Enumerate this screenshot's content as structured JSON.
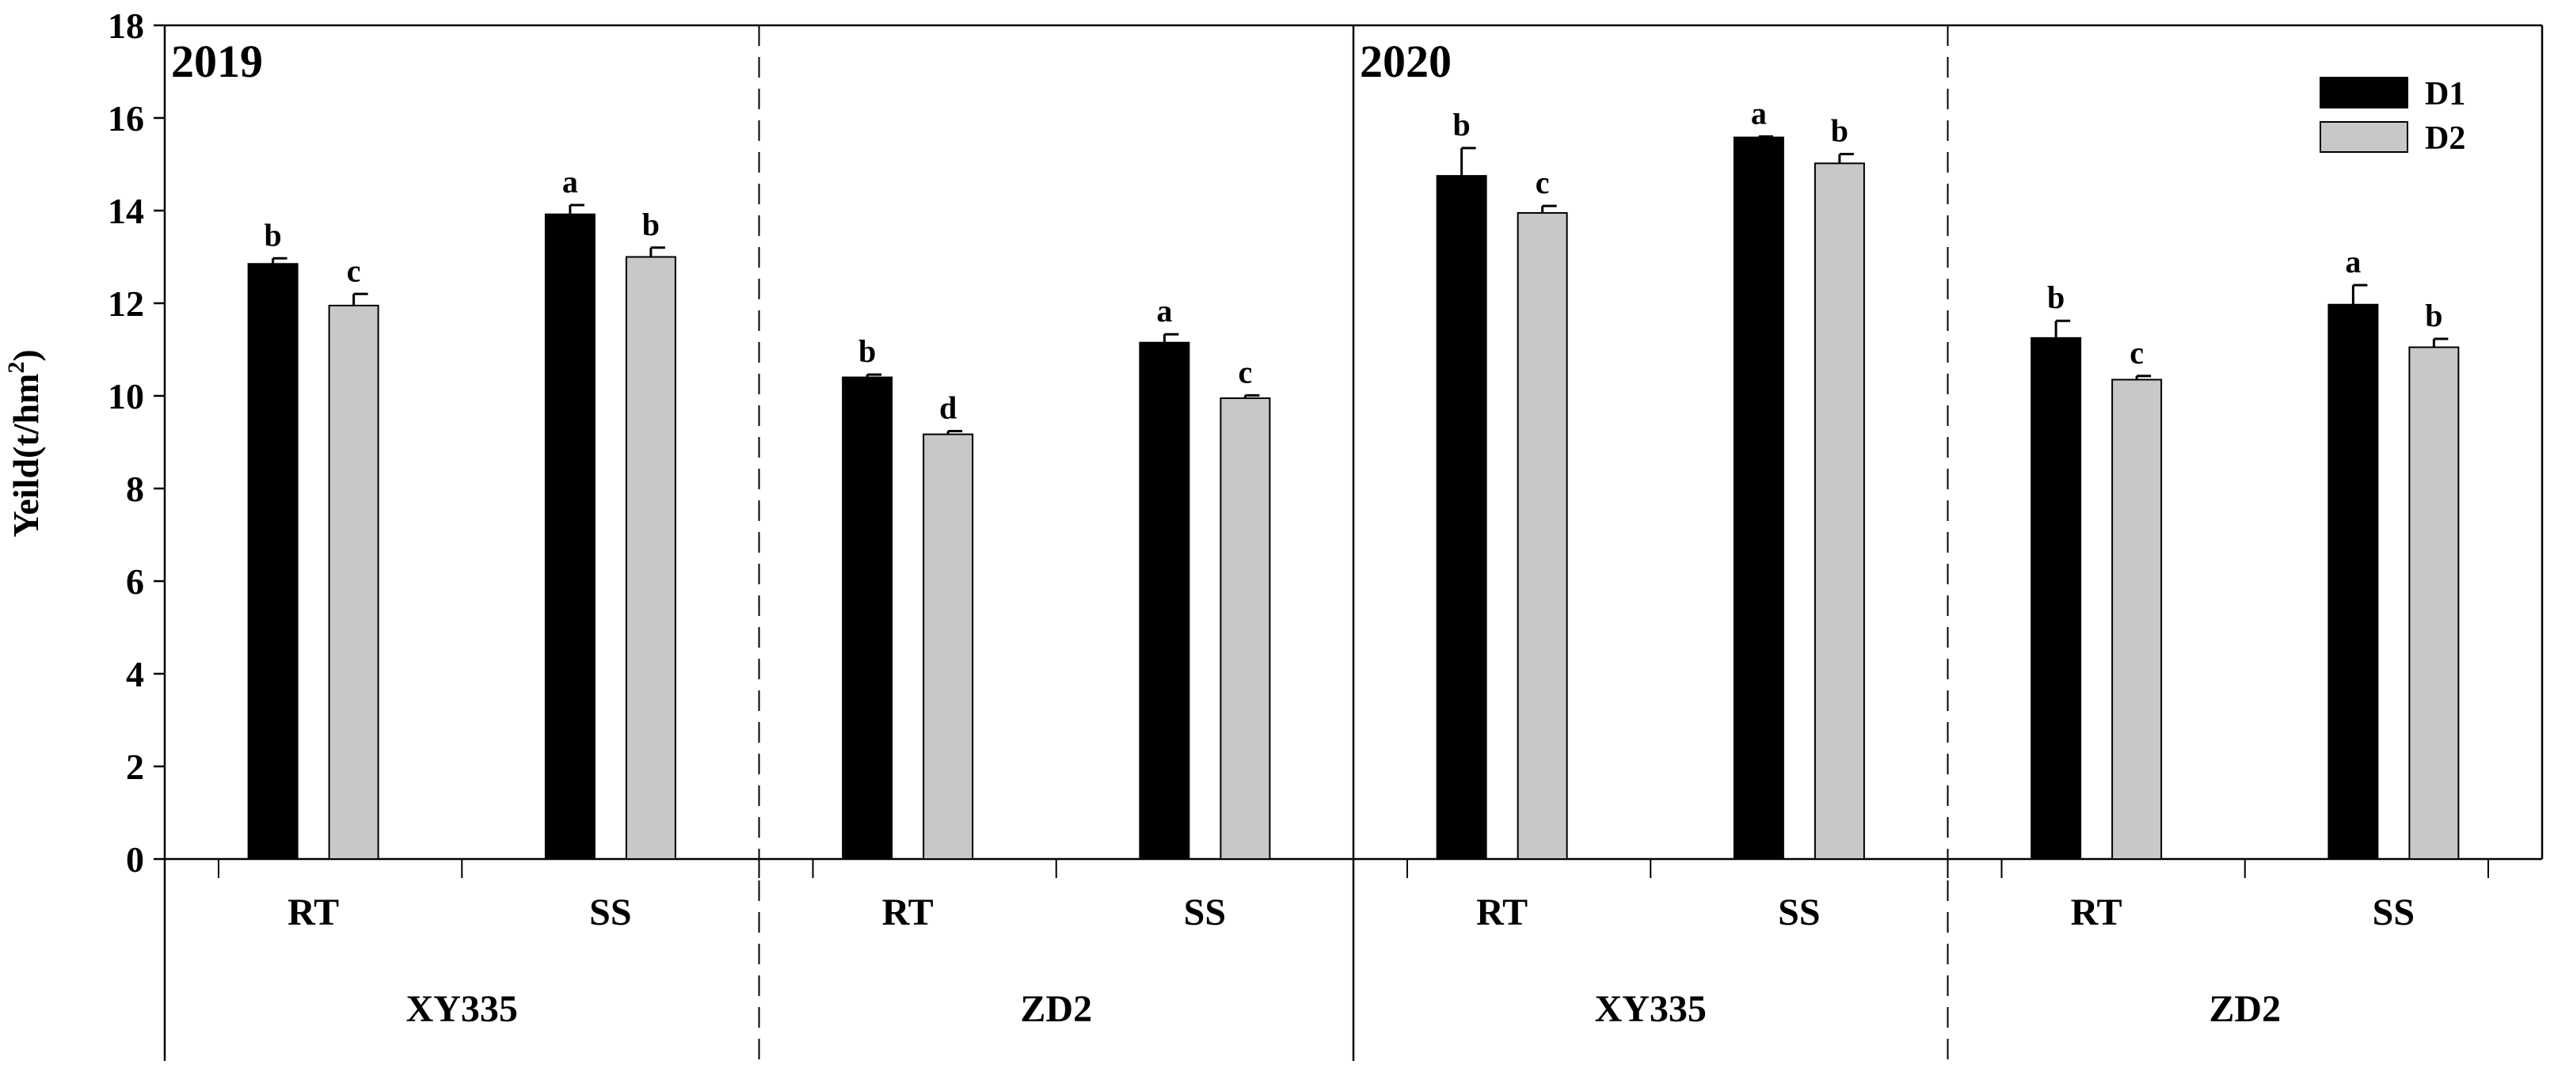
{
  "chart_data": {
    "type": "bar",
    "ylabel": "Yeild(t/hm",
    "ylabel_sup": "2",
    "ylabel_close": ")",
    "ylim": [
      0,
      18
    ],
    "yticks": [
      0,
      2,
      4,
      6,
      8,
      10,
      12,
      14,
      16,
      18
    ],
    "grid": false,
    "legend_position": "top-right",
    "colors": {
      "D1": "#000000",
      "D2": "#c8c8c8"
    },
    "series": [
      {
        "name": "D1"
      },
      {
        "name": "D2"
      }
    ],
    "panels": [
      {
        "year": "2019",
        "groups": [
          {
            "variety": "XY335",
            "subgroups": [
              {
                "label": "RT",
                "values": [
                  12.85,
                  11.95
                ],
                "errors": [
                  0.12,
                  0.25
                ],
                "letters": [
                  "b",
                  "c"
                ]
              },
              {
                "label": "SS",
                "values": [
                  13.92,
                  13.0
                ],
                "errors": [
                  0.2,
                  0.2
                ],
                "letters": [
                  "a",
                  "b"
                ]
              }
            ]
          },
          {
            "variety": "ZD2",
            "subgroups": [
              {
                "label": "RT",
                "values": [
                  10.4,
                  9.17
                ],
                "errors": [
                  0.06,
                  0.07
                ],
                "letters": [
                  "b",
                  "d"
                ]
              },
              {
                "label": "SS",
                "values": [
                  11.15,
                  9.95
                ],
                "errors": [
                  0.18,
                  0.06
                ],
                "letters": [
                  "a",
                  "c"
                ]
              }
            ]
          }
        ]
      },
      {
        "year": "2020",
        "groups": [
          {
            "variety": "XY335",
            "subgroups": [
              {
                "label": "RT",
                "values": [
                  14.75,
                  13.95
                ],
                "errors": [
                  0.6,
                  0.15
                ],
                "letters": [
                  "b",
                  "c"
                ]
              },
              {
                "label": "SS",
                "values": [
                  15.58,
                  15.02
                ],
                "errors": [
                  0.02,
                  0.2
                ],
                "letters": [
                  "a",
                  "b"
                ]
              }
            ]
          },
          {
            "variety": "ZD2",
            "subgroups": [
              {
                "label": "RT",
                "values": [
                  11.25,
                  10.35
                ],
                "errors": [
                  0.37,
                  0.08
                ],
                "letters": [
                  "b",
                  "c"
                ]
              },
              {
                "label": "SS",
                "values": [
                  11.97,
                  11.05
                ],
                "errors": [
                  0.42,
                  0.18
                ],
                "letters": [
                  "a",
                  "b"
                ]
              }
            ]
          }
        ]
      }
    ]
  }
}
